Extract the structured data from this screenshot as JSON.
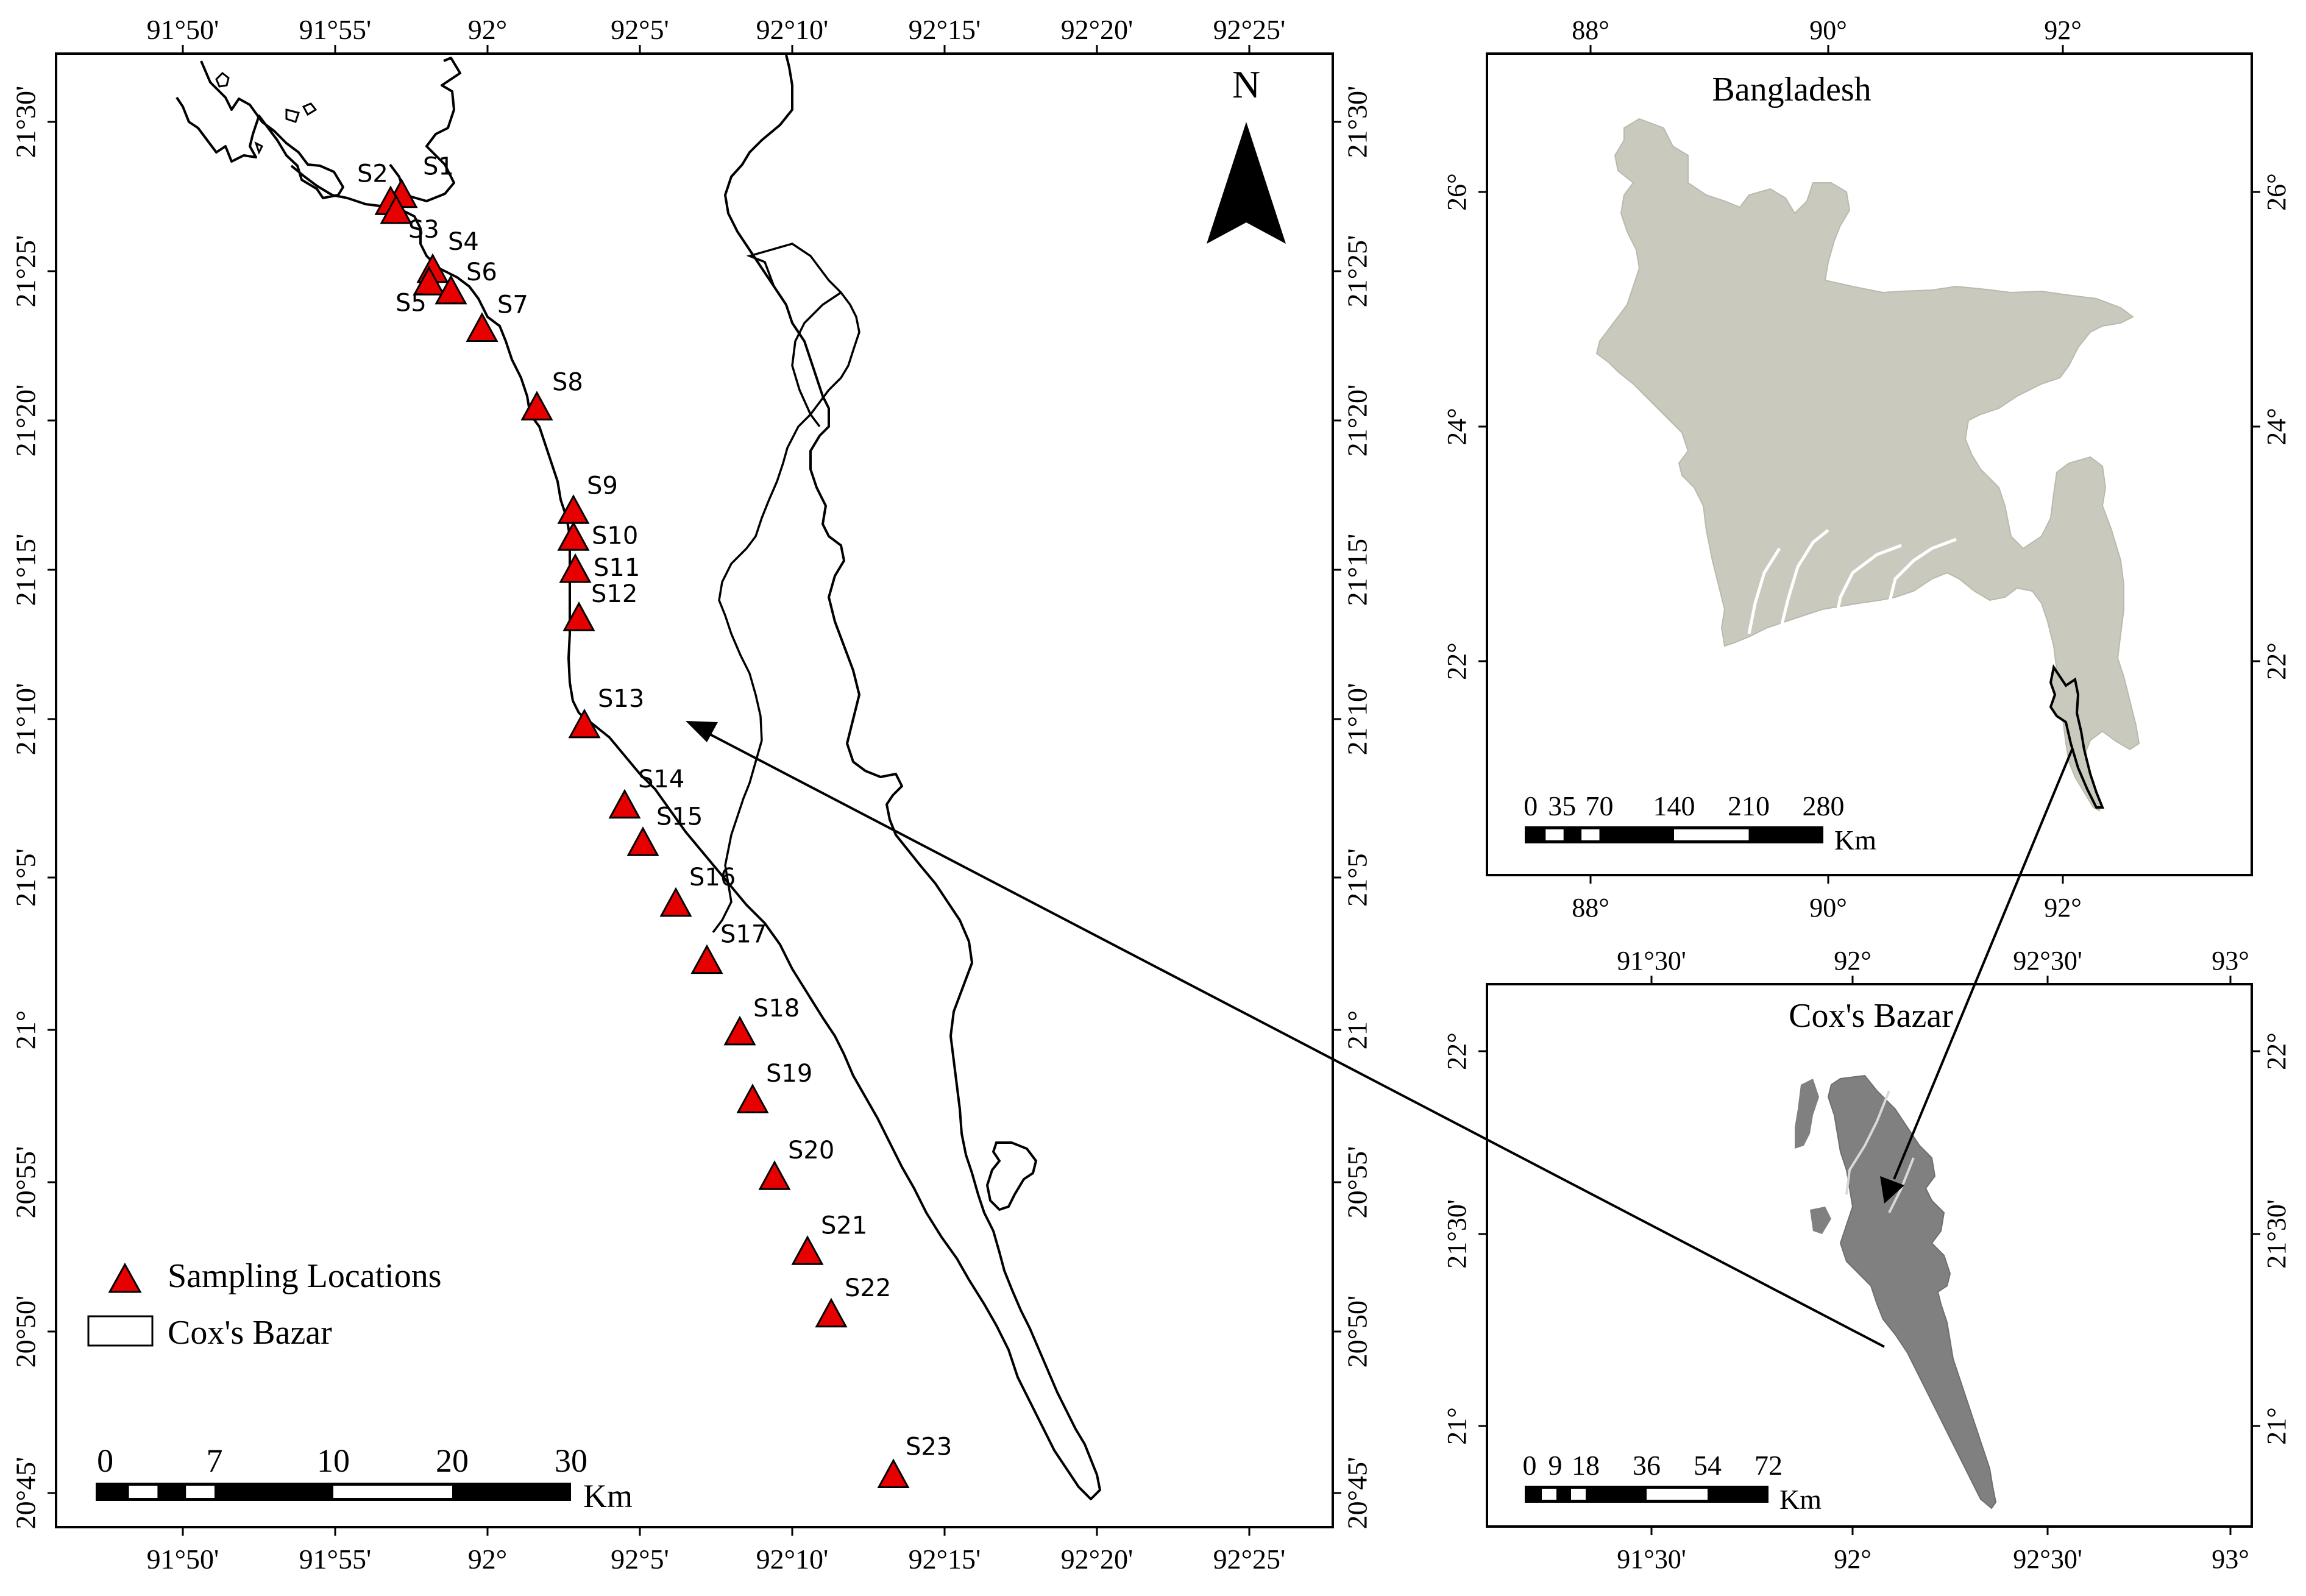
{
  "main_map": {
    "top_ticks": [
      "91°50'",
      "91°55'",
      "92°",
      "92°5'",
      "92°10'",
      "92°15'",
      "92°20'",
      "92°25'"
    ],
    "bottom_ticks": [
      "91°50'",
      "91°55'",
      "92°",
      "92°5'",
      "92°10'",
      "92°15'",
      "92°20'",
      "92°25'"
    ],
    "left_ticks": [
      "21°30'",
      "21°25'",
      "21°20'",
      "21°15'",
      "21°10'",
      "21°5'",
      "21°",
      "20°55'",
      "20°50'",
      "20°45'"
    ],
    "right_ticks": [
      "21°30'",
      "21°25'",
      "21°20'",
      "21°15'",
      "21°10'",
      "21°5'",
      "21°",
      "20°55'",
      "20°50'",
      "20°45'"
    ],
    "north_label": "N",
    "stations": [
      {
        "label": "S1",
        "lon": 91.953,
        "lat": 21.467
      },
      {
        "label": "S2",
        "lon": 91.947,
        "lat": 21.463
      },
      {
        "label": "S3",
        "lon": 91.95,
        "lat": 21.458
      },
      {
        "label": "S4",
        "lon": 91.97,
        "lat": 21.425
      },
      {
        "label": "S5",
        "lon": 91.968,
        "lat": 21.418
      },
      {
        "label": "S6",
        "lon": 91.98,
        "lat": 21.413
      },
      {
        "label": "S7",
        "lon": 91.997,
        "lat": 21.392
      },
      {
        "label": "S8",
        "lon": 92.027,
        "lat": 21.348
      },
      {
        "label": "S9",
        "lon": 92.047,
        "lat": 21.29
      },
      {
        "label": "S10",
        "lon": 92.047,
        "lat": 21.275
      },
      {
        "label": "S11",
        "lon": 92.048,
        "lat": 21.257
      },
      {
        "label": "S12",
        "lon": 92.05,
        "lat": 21.23
      },
      {
        "label": "S13",
        "lon": 92.053,
        "lat": 21.17
      },
      {
        "label": "S14",
        "lon": 92.075,
        "lat": 21.125
      },
      {
        "label": "S15",
        "lon": 92.085,
        "lat": 21.104
      },
      {
        "label": "S16",
        "lon": 92.103,
        "lat": 21.07
      },
      {
        "label": "S17",
        "lon": 92.12,
        "lat": 21.038
      },
      {
        "label": "S18",
        "lon": 92.138,
        "lat": 20.998
      },
      {
        "label": "S19",
        "lon": 92.145,
        "lat": 20.96
      },
      {
        "label": "S20",
        "lon": 92.157,
        "lat": 20.917
      },
      {
        "label": "S21",
        "lon": 92.175,
        "lat": 20.875
      },
      {
        "label": "S22",
        "lon": 92.188,
        "lat": 20.84
      },
      {
        "label": "S23",
        "lon": 92.222,
        "lat": 20.75
      }
    ],
    "legend": {
      "sampling": "Sampling Locations",
      "coxs": "Cox's Bazar"
    },
    "scalebar": {
      "labels": [
        "0",
        "7",
        "10",
        "20",
        "30"
      ],
      "unit": "Km"
    }
  },
  "bangladesh_map": {
    "title": "Bangladesh",
    "top_ticks": [
      "88°",
      "90°",
      "92°"
    ],
    "bottom_ticks": [
      "88°",
      "90°",
      "92°"
    ],
    "left_ticks": [
      "26°",
      "24°",
      "22°"
    ],
    "right_ticks": [
      "26°",
      "24°",
      "22°"
    ],
    "scalebar": {
      "labels": [
        "0",
        "35",
        "70",
        "140",
        "210",
        "280"
      ],
      "unit": "Km"
    }
  },
  "coxs_map": {
    "title": "Cox's Bazar",
    "top_ticks": [
      "91°30'",
      "92°",
      "92°30'",
      "93°"
    ],
    "bottom_ticks": [
      "91°30'",
      "92°",
      "92°30'",
      "93°"
    ],
    "left_ticks": [
      "22°",
      "21°30'",
      "21°"
    ],
    "right_ticks": [
      "22°",
      "21°30'",
      "21°"
    ],
    "scalebar": {
      "labels": [
        "0",
        "9",
        "18",
        "36",
        "54",
        "72"
      ],
      "unit": "Km"
    }
  },
  "colors": {
    "marker": "#e60000",
    "bangladesh_fill": "#c9c9bd",
    "coxs_fill": "#808080",
    "line": "#000000"
  }
}
